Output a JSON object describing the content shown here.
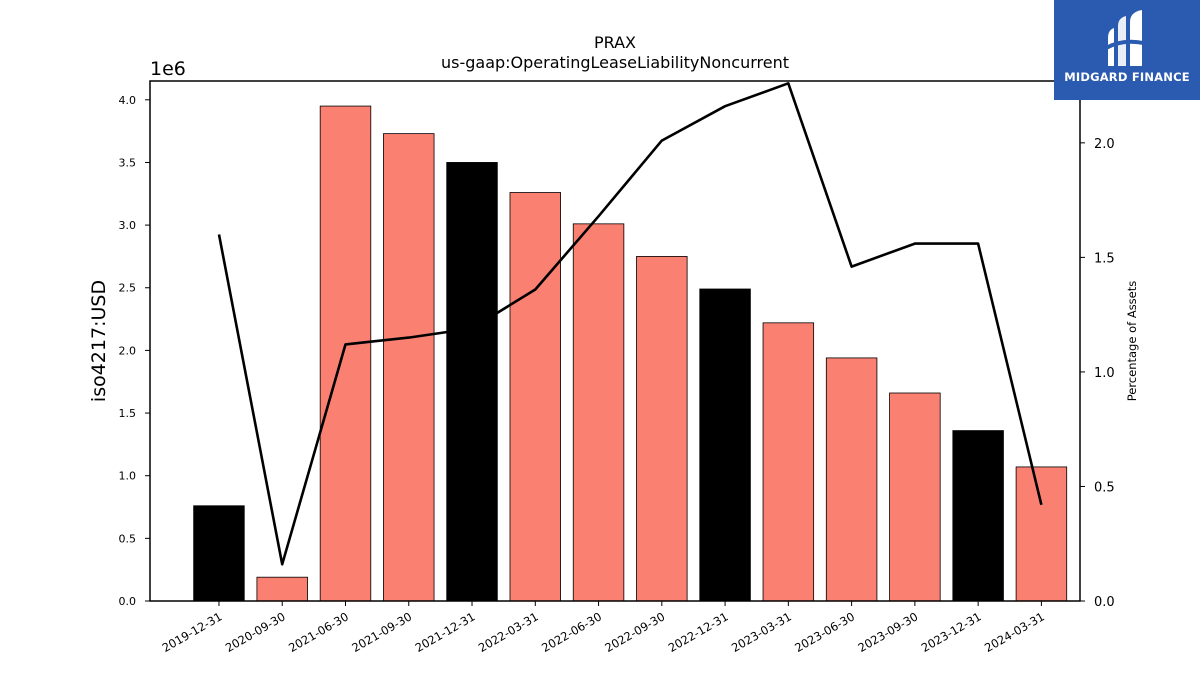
{
  "chart_data": {
    "type": "bar",
    "title": "PRAX",
    "subtitle": "us-gaap:OperatingLeaseLiabilityNoncurrent",
    "ylabel": "iso4217:USD",
    "y2label": "Percentage of Assets",
    "y_multiplier_label": "1e6",
    "ylim": [
      0,
      4.15
    ],
    "y2lim": [
      0,
      2.27
    ],
    "yticks": [
      "0.0",
      "0.5",
      "1.0",
      "1.5",
      "2.0",
      "2.5",
      "3.0",
      "3.5",
      "4.0"
    ],
    "y2ticks": [
      "0.0",
      "0.5",
      "1.0",
      "1.5",
      "2.0"
    ],
    "grid": false,
    "categories": [
      "2019-12-31",
      "2020-09-30",
      "2021-06-30",
      "2021-09-30",
      "2021-12-31",
      "2022-03-31",
      "2022-06-30",
      "2022-09-30",
      "2022-12-31",
      "2023-03-31",
      "2023-06-30",
      "2023-09-30",
      "2023-12-31",
      "2024-03-31"
    ],
    "values": [
      0.76,
      0.19,
      3.95,
      3.73,
      3.5,
      3.26,
      3.01,
      2.75,
      2.49,
      2.22,
      1.94,
      1.66,
      1.36,
      1.07
    ],
    "bar_colors": [
      "#000000",
      "#fa8072",
      "#fa8072",
      "#fa8072",
      "#000000",
      "#fa8072",
      "#fa8072",
      "#fa8072",
      "#000000",
      "#fa8072",
      "#fa8072",
      "#fa8072",
      "#000000",
      "#fa8072"
    ],
    "line_values": [
      1.6,
      0.16,
      1.12,
      1.15,
      1.19,
      1.36,
      1.68,
      2.01,
      2.16,
      2.26,
      1.46,
      1.56,
      1.56,
      0.42
    ],
    "line_color": "#000000"
  },
  "logo": {
    "text": "MIDGARD FINANCE",
    "color": "#2a5bb0"
  }
}
